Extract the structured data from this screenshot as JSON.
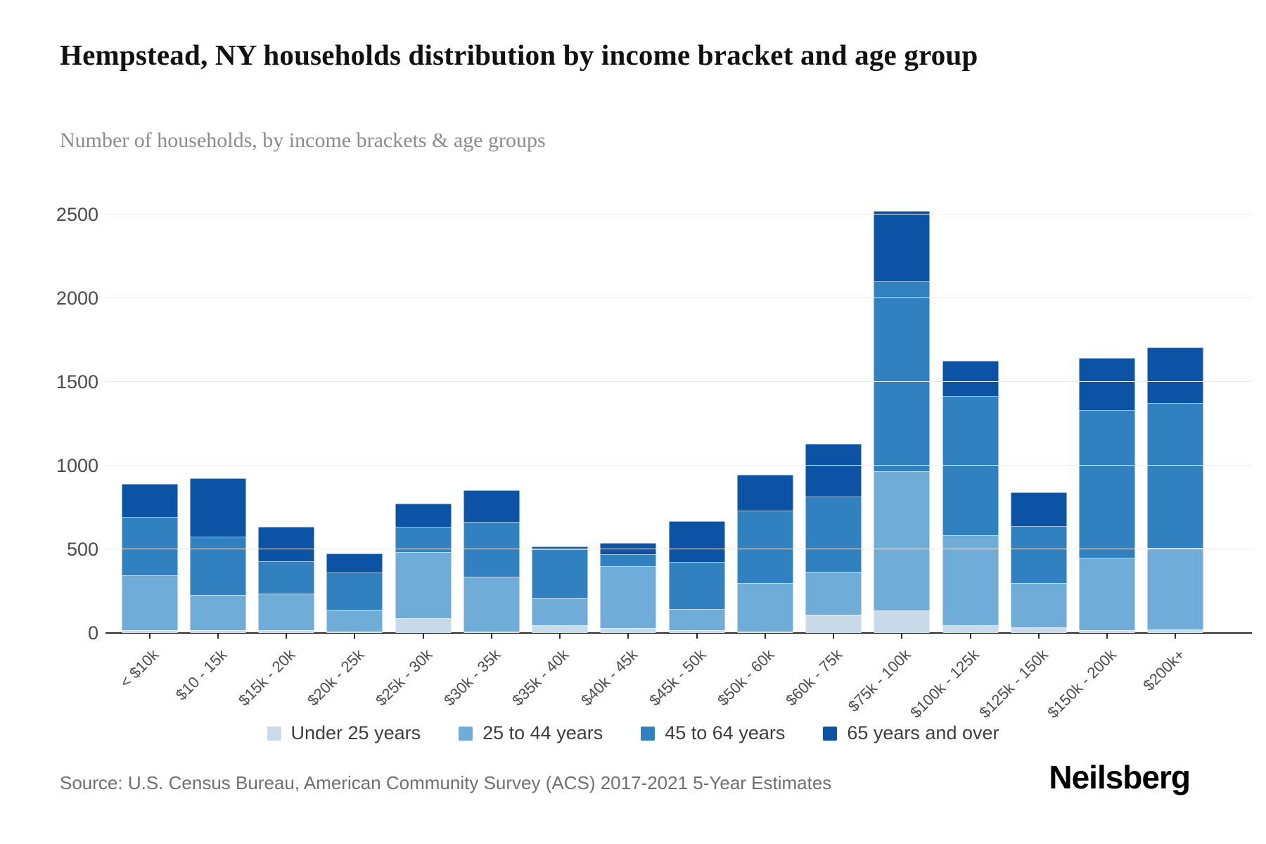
{
  "header": {
    "title": "Hempstead, NY households distribution by income bracket and age group",
    "subtitle": "Number of households, by income brackets & age groups"
  },
  "chart_data": {
    "type": "bar",
    "stacked": true,
    "title": "Hempstead, NY households distribution by income bracket and age group",
    "xlabel": "",
    "ylabel": "Number of households",
    "ylim": [
      0,
      2650
    ],
    "yticks": [
      0,
      500,
      1000,
      1500,
      2000,
      2500
    ],
    "grid": true,
    "legend_position": "bottom",
    "categories": [
      "< $10k",
      "$10 - 15k",
      "$15k - 20k",
      "$20k - 25k",
      "$25k - 30k",
      "$30k - 35k",
      "$35k - 40k",
      "$40k - 45k",
      "$45k - 50k",
      "$50k - 60k",
      "$60k - 75k",
      "$75k - 100k",
      "$100k - 125k",
      "$125k - 150k",
      "$150k - 200k",
      "$200k+"
    ],
    "series": [
      {
        "name": "Under 25 years",
        "color": "#c9dbeb",
        "values": [
          15,
          15,
          15,
          10,
          90,
          10,
          45,
          30,
          15,
          10,
          110,
          135,
          45,
          35,
          15,
          20
        ]
      },
      {
        "name": "25 to 44 years",
        "color": "#6fadd8",
        "values": [
          330,
          210,
          220,
          130,
          395,
          325,
          165,
          370,
          130,
          290,
          255,
          830,
          540,
          265,
          435,
          490
        ]
      },
      {
        "name": "45 to 64 years",
        "color": "#3180bf",
        "values": [
          350,
          350,
          195,
          220,
          150,
          330,
          290,
          70,
          280,
          430,
          450,
          1135,
          830,
          340,
          880,
          865
        ]
      },
      {
        "name": "65 years and over",
        "color": "#0d53a5",
        "values": [
          195,
          350,
          205,
          115,
          140,
          190,
          15,
          70,
          245,
          215,
          315,
          420,
          210,
          200,
          315,
          330
        ]
      }
    ],
    "bar_totals": [
      890,
      925,
      635,
      475,
      775,
      855,
      515,
      540,
      670,
      945,
      1130,
      2520,
      1625,
      840,
      1645,
      1705
    ]
  },
  "footer": {
    "source": "Source: U.S. Census Bureau, American Community Survey (ACS) 2017-2021 5-Year Estimates",
    "brand": "Neilsberg"
  }
}
